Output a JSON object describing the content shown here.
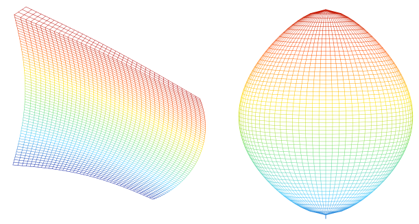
{
  "panels": [
    {
      "name": "left-mesh",
      "view": "oblique",
      "colormap": "jet-like",
      "colors": [
        "#b00000",
        "#ff5000",
        "#ffe000",
        "#70e070",
        "#40c8ff",
        "#1020a0"
      ]
    },
    {
      "name": "right-mesh",
      "view": "frontal",
      "colormap": "jet-like",
      "colors": [
        "#b00000",
        "#ff5000",
        "#ffe000",
        "#70e070",
        "#40c8ff",
        "#1020a0"
      ]
    }
  ]
}
